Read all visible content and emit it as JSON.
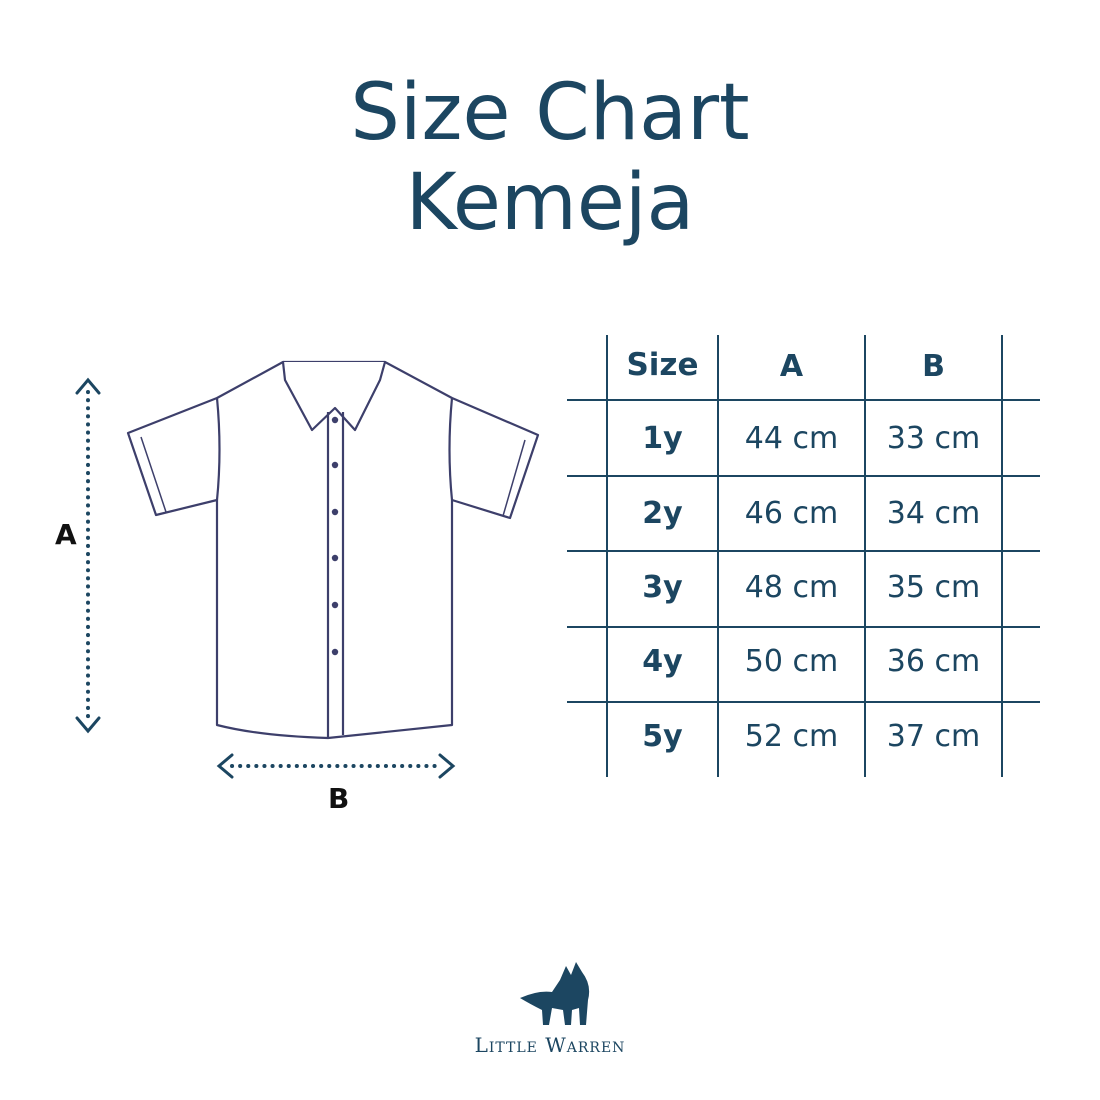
{
  "title": {
    "line1": "Size Chart",
    "line2": "Kemeja"
  },
  "diagram": {
    "label_a": "A",
    "label_b": "B"
  },
  "table": {
    "headers": [
      "Size",
      "A",
      "B"
    ],
    "rows": [
      [
        "1y",
        "44 cm",
        "33 cm"
      ],
      [
        "2y",
        "46 cm",
        "34 cm"
      ],
      [
        "3y",
        "48 cm",
        "35 cm"
      ],
      [
        "4y",
        "50 cm",
        "36 cm"
      ],
      [
        "5y",
        "52 cm",
        "37 cm"
      ]
    ]
  },
  "brand": {
    "name": "Little Warren",
    "icon": "fox-logo-icon"
  },
  "colors": {
    "primary": "#1c4661",
    "outline": "#3d3f6b"
  }
}
